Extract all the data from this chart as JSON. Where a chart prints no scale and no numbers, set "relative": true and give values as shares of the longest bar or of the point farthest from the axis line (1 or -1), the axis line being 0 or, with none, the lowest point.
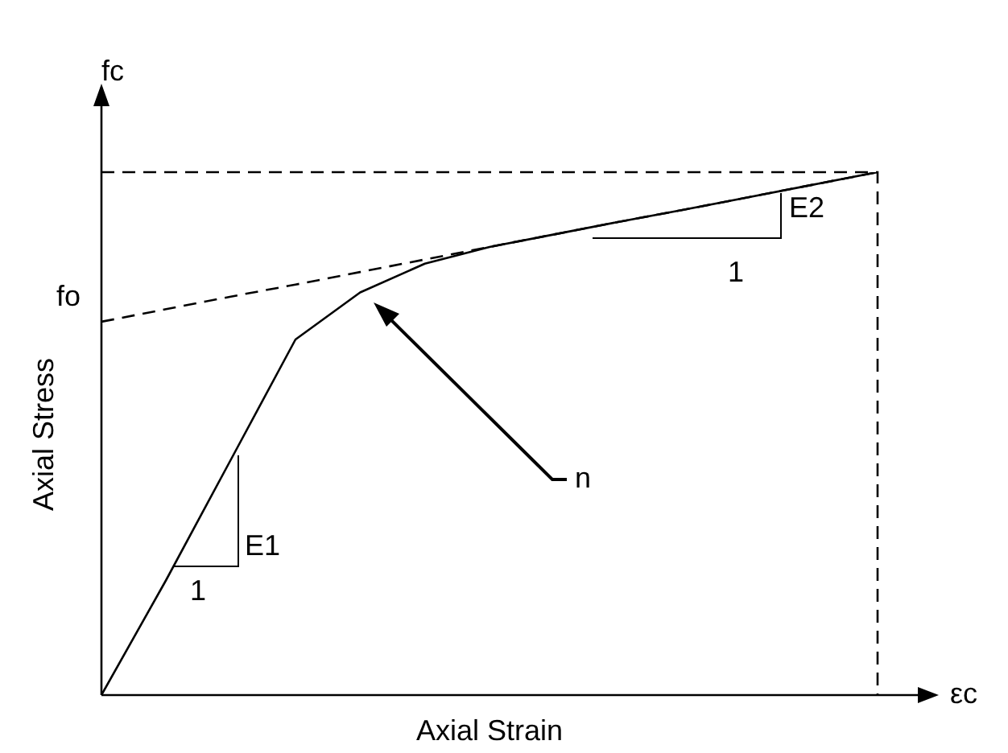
{
  "chart_data": {
    "type": "line",
    "relative": true,
    "xlabel": "Axial Strain",
    "ylabel": "Axial Stress",
    "categories": [
      null,
      null,
      null,
      null,
      null,
      null,
      null,
      null,
      null,
      null,
      null,
      null,
      null
    ],
    "series": [
      {
        "color": "#000000",
        "line_style": "solid",
        "values": [
          0,
          0.22,
          0.45,
          0.68,
          0.77,
          0.825,
          0.857,
          0.881,
          0.905,
          0.928,
          0.952,
          0.976,
          1
        ]
      },
      {
        "color": "#000000",
        "line_style": "dashed",
        "values": [
          0.714,
          0.738,
          0.762,
          0.785,
          0.809,
          0.833,
          0.857,
          0.881,
          0.905,
          0.928,
          0.952,
          0.976,
          1
        ]
      }
    ],
    "ref_lines": [
      {
        "axis": "y",
        "value": 1,
        "line_style": "dashed"
      }
    ],
    "annotations": [
      "fc",
      "εc",
      "fo",
      "E1",
      "1",
      "E2",
      "1",
      "n"
    ],
    "legend": false,
    "marker": "none"
  }
}
